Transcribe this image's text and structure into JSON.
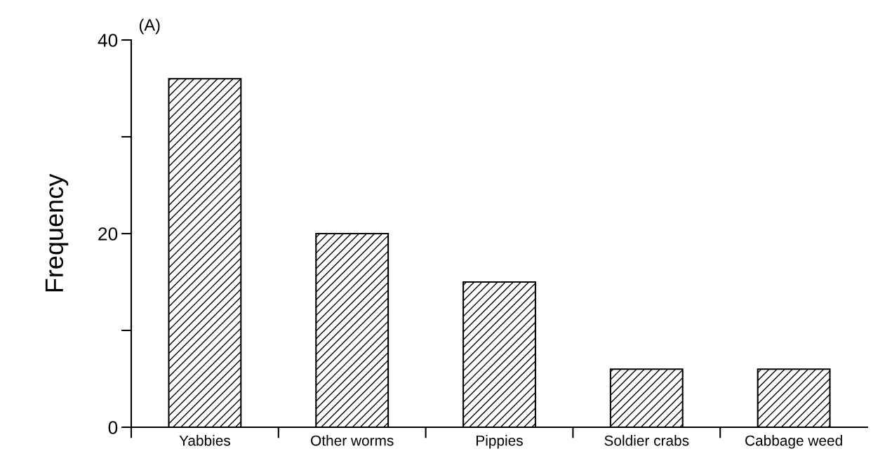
{
  "chart_data": {
    "type": "bar",
    "title": "(A)",
    "ylabel": "Frequency",
    "categories": [
      "Yabbies",
      "Other worms",
      "Pippies",
      "Soldier crabs",
      "Cabbage weed"
    ],
    "values": [
      36,
      20,
      15,
      6,
      6
    ],
    "color": "#000000",
    "ylim": [
      0,
      40
    ],
    "yticks": [
      0,
      {
        "value": 10,
        "label": null
      },
      20,
      {
        "value": 30,
        "label": null
      },
      40
    ],
    "grid": false
  }
}
